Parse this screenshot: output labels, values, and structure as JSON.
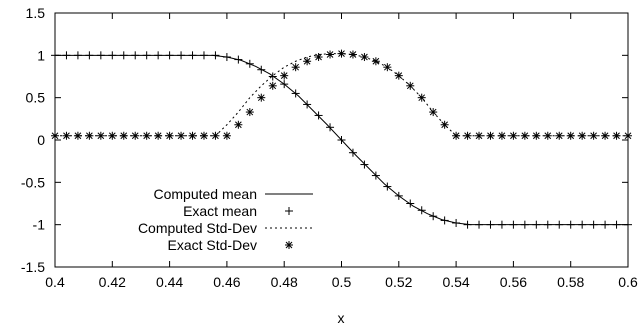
{
  "chart_data": {
    "type": "line",
    "title": "",
    "xlabel": "x",
    "ylabel": "",
    "xlim": [
      0.4,
      0.6
    ],
    "ylim": [
      -1.5,
      1.5
    ],
    "x_ticks": [
      0.4,
      0.42,
      0.44,
      0.46,
      0.48,
      0.5,
      0.52,
      0.54,
      0.56,
      0.58,
      0.6
    ],
    "x_tick_labels": [
      "0.4",
      "0.42",
      "0.44",
      "0.46",
      "0.48",
      "0.5",
      "0.52",
      "0.54",
      "0.56",
      "0.58",
      "0.6"
    ],
    "y_ticks": [
      -1.5,
      -1,
      -0.5,
      0,
      0.5,
      1,
      1.5
    ],
    "y_tick_labels": [
      "-1.5",
      "-1",
      "-0.5",
      "0",
      "0.5",
      "1",
      "1.5"
    ],
    "grid": false,
    "legend_position": "bottom-left",
    "series": [
      {
        "name": "Computed mean",
        "style": "solid-line",
        "x": [
          0.4,
          0.45,
          0.455,
          0.46,
          0.465,
          0.47,
          0.475,
          0.48,
          0.485,
          0.49,
          0.495,
          0.5,
          0.505,
          0.51,
          0.515,
          0.52,
          0.525,
          0.53,
          0.535,
          0.54,
          0.545,
          0.55,
          0.6
        ],
        "y": [
          1.0,
          1.0,
          1.0,
          0.98,
          0.94,
          0.87,
          0.78,
          0.66,
          0.52,
          0.35,
          0.18,
          0.0,
          -0.18,
          -0.35,
          -0.52,
          -0.66,
          -0.78,
          -0.87,
          -0.94,
          -0.98,
          -1.0,
          -1.0,
          -1.0
        ]
      },
      {
        "name": "Exact mean",
        "style": "plus-markers",
        "x": [
          0.4,
          0.404,
          0.408,
          0.412,
          0.416,
          0.42,
          0.424,
          0.428,
          0.432,
          0.436,
          0.44,
          0.444,
          0.448,
          0.452,
          0.456,
          0.46,
          0.464,
          0.468,
          0.472,
          0.476,
          0.48,
          0.484,
          0.488,
          0.492,
          0.496,
          0.5,
          0.504,
          0.508,
          0.512,
          0.516,
          0.52,
          0.524,
          0.528,
          0.532,
          0.536,
          0.54,
          0.544,
          0.548,
          0.552,
          0.556,
          0.56,
          0.564,
          0.568,
          0.572,
          0.576,
          0.58,
          0.584,
          0.588,
          0.592,
          0.596,
          0.6
        ],
        "y": [
          1.0,
          1.0,
          1.0,
          1.0,
          1.0,
          1.0,
          1.0,
          1.0,
          1.0,
          1.0,
          1.0,
          1.0,
          1.0,
          1.0,
          1.0,
          0.98,
          0.95,
          0.9,
          0.83,
          0.75,
          0.66,
          0.55,
          0.42,
          0.29,
          0.15,
          0.0,
          -0.15,
          -0.29,
          -0.42,
          -0.55,
          -0.66,
          -0.75,
          -0.83,
          -0.9,
          -0.95,
          -0.98,
          -1.0,
          -1.0,
          -1.0,
          -1.0,
          -1.0,
          -1.0,
          -1.0,
          -1.0,
          -1.0,
          -1.0,
          -1.0,
          -1.0,
          -1.0,
          -1.0,
          -1.0
        ]
      },
      {
        "name": "Computed Std-Dev",
        "style": "dashed-line",
        "x": [
          0.4,
          0.456,
          0.46,
          0.464,
          0.468,
          0.472,
          0.476,
          0.48,
          0.484,
          0.488,
          0.492,
          0.496,
          0.5,
          0.504,
          0.508,
          0.512,
          0.516,
          0.52,
          0.524,
          0.528,
          0.532,
          0.536,
          0.54,
          0.544,
          0.6
        ],
        "y": [
          0.05,
          0.05,
          0.18,
          0.33,
          0.5,
          0.64,
          0.76,
          0.86,
          0.93,
          0.98,
          1.01,
          1.02,
          1.02,
          1.01,
          0.98,
          0.93,
          0.86,
          0.76,
          0.64,
          0.5,
          0.33,
          0.18,
          0.05,
          0.05,
          0.05
        ]
      },
      {
        "name": "Exact Std-Dev",
        "style": "star-markers",
        "x": [
          0.4,
          0.404,
          0.408,
          0.412,
          0.416,
          0.42,
          0.424,
          0.428,
          0.432,
          0.436,
          0.44,
          0.444,
          0.448,
          0.452,
          0.456,
          0.46,
          0.464,
          0.468,
          0.472,
          0.476,
          0.48,
          0.484,
          0.488,
          0.492,
          0.496,
          0.5,
          0.504,
          0.508,
          0.512,
          0.516,
          0.52,
          0.524,
          0.528,
          0.532,
          0.536,
          0.54,
          0.544,
          0.548,
          0.552,
          0.556,
          0.56,
          0.564,
          0.568,
          0.572,
          0.576,
          0.58,
          0.584,
          0.588,
          0.592,
          0.596,
          0.6
        ],
        "y": [
          0.05,
          0.05,
          0.05,
          0.05,
          0.05,
          0.05,
          0.05,
          0.05,
          0.05,
          0.05,
          0.05,
          0.05,
          0.05,
          0.05,
          0.05,
          0.05,
          0.18,
          0.33,
          0.5,
          0.64,
          0.76,
          0.86,
          0.93,
          0.98,
          1.01,
          1.02,
          1.01,
          0.98,
          0.93,
          0.86,
          0.76,
          0.64,
          0.5,
          0.33,
          0.18,
          0.05,
          0.05,
          0.05,
          0.05,
          0.05,
          0.05,
          0.05,
          0.05,
          0.05,
          0.05,
          0.05,
          0.05,
          0.05,
          0.05,
          0.05,
          0.05
        ]
      }
    ]
  }
}
